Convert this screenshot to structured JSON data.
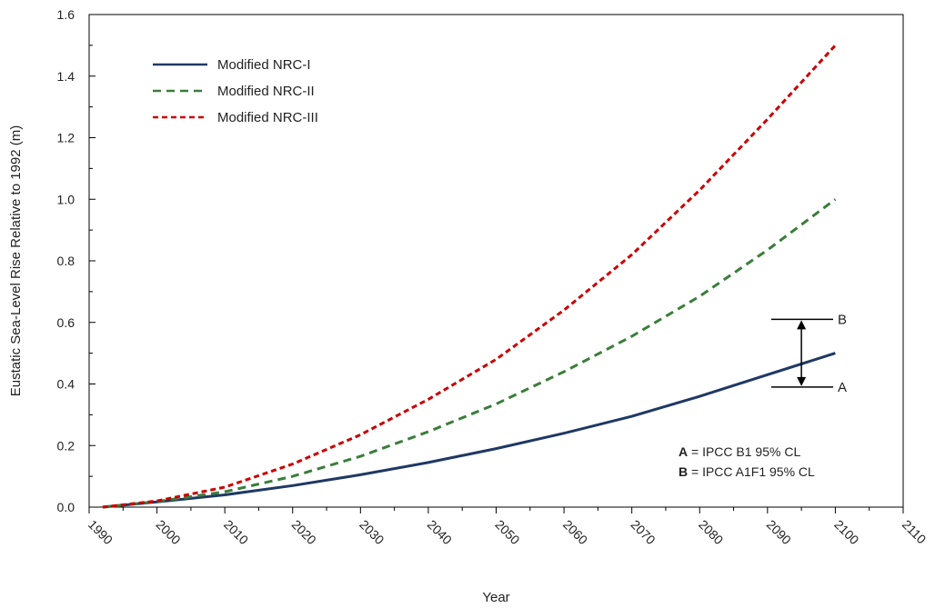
{
  "chart_data": {
    "type": "line",
    "title": "",
    "xlabel": "Year",
    "ylabel": "Eustatic Sea-Level Rise Relative to 1992 (m)",
    "xlim": [
      1990,
      2110
    ],
    "ylim": [
      0,
      1.6
    ],
    "x_ticks": [
      "1990",
      "2000",
      "2010",
      "2020",
      "2030",
      "2040",
      "2050",
      "2060",
      "2070",
      "2080",
      "2090",
      "2100",
      "2110"
    ],
    "y_ticks": [
      "0.0",
      "0.2",
      "0.4",
      "0.6",
      "0.8",
      "1.0",
      "1.2",
      "1.4",
      "1.6"
    ],
    "grid": false,
    "legend_position": "top-left",
    "series": [
      {
        "name": "Modified NRC-I",
        "color": "#1f3864",
        "style": "solid",
        "x": [
          1992,
          2000,
          2010,
          2020,
          2030,
          2040,
          2050,
          2060,
          2070,
          2080,
          2090,
          2100
        ],
        "values": [
          0.0,
          0.017,
          0.04,
          0.07,
          0.105,
          0.145,
          0.19,
          0.24,
          0.295,
          0.36,
          0.43,
          0.5
        ]
      },
      {
        "name": "Modified NRC-II",
        "color": "#3a7d3a",
        "style": "dashed",
        "x": [
          1992,
          2000,
          2010,
          2020,
          2030,
          2040,
          2050,
          2060,
          2070,
          2080,
          2090,
          2100
        ],
        "values": [
          0.0,
          0.018,
          0.05,
          0.1,
          0.165,
          0.245,
          0.335,
          0.44,
          0.555,
          0.685,
          0.835,
          1.0
        ]
      },
      {
        "name": "Modified NRC-III",
        "color": "#cc0000",
        "style": "dashed",
        "x": [
          1992,
          2000,
          2010,
          2020,
          2030,
          2040,
          2050,
          2060,
          2070,
          2080,
          2090,
          2100
        ],
        "values": [
          0.0,
          0.02,
          0.065,
          0.14,
          0.235,
          0.35,
          0.48,
          0.64,
          0.82,
          1.03,
          1.26,
          1.5
        ]
      }
    ],
    "range_annotation": {
      "x": 2095,
      "low": {
        "label": "A",
        "value": 0.39
      },
      "high": {
        "label": "B",
        "value": 0.61
      }
    },
    "notes": [
      {
        "key": "A",
        "text": " = IPCC B1 95% CL"
      },
      {
        "key": "B",
        "text": " = IPCC A1F1 95% CL"
      }
    ]
  }
}
